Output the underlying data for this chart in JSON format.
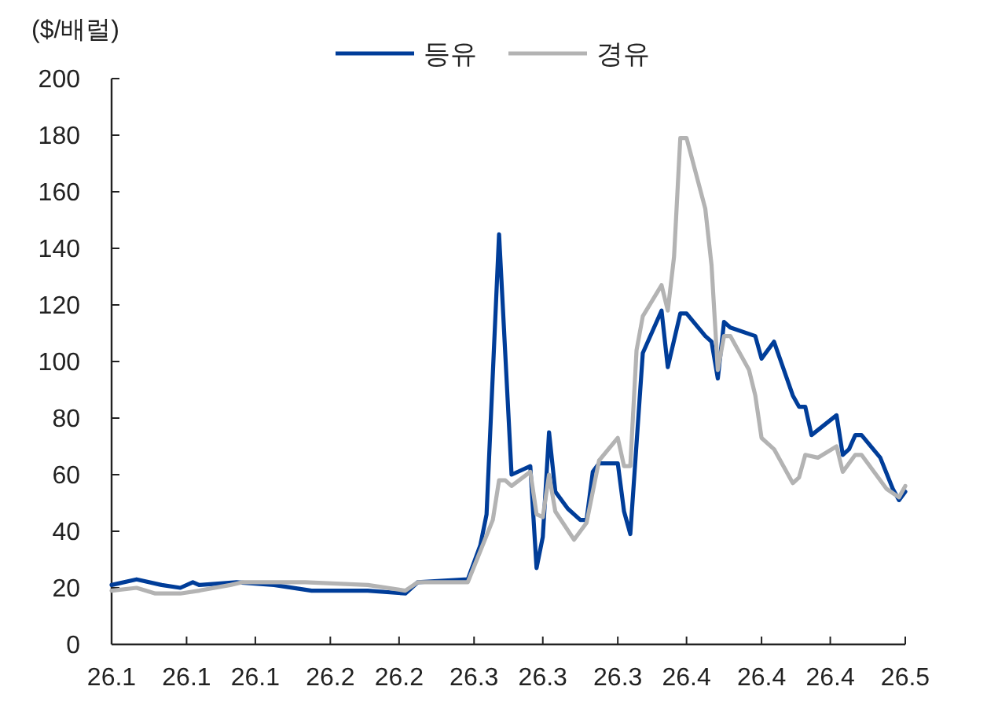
{
  "chart_data": {
    "type": "line",
    "ylabel": "($/배럴)",
    "legend": "top",
    "grid": false,
    "marker": "none",
    "line_style": "solid",
    "xlim": [
      "--01-03",
      "--05-10"
    ],
    "xticks": [
      {
        "value": "--01-03",
        "label": "26.1"
      },
      {
        "value": "--01-15",
        "label": "26.1"
      },
      {
        "value": "--01-26",
        "label": "26.1"
      },
      {
        "value": "--02-07",
        "label": "26.2"
      },
      {
        "value": "--02-18",
        "label": "26.2"
      },
      {
        "value": "--03-02",
        "label": "26.3"
      },
      {
        "value": "--03-13",
        "label": "26.3"
      },
      {
        "value": "--03-25",
        "label": "26.3"
      },
      {
        "value": "--04-05",
        "label": "26.4"
      },
      {
        "value": "--04-17",
        "label": "26.4"
      },
      {
        "value": "--04-28",
        "label": "26.4"
      },
      {
        "value": "--05-10",
        "label": "26.5"
      }
    ],
    "ylim": [
      0,
      200
    ],
    "yticks": [
      0,
      20,
      40,
      60,
      80,
      100,
      120,
      140,
      160,
      180,
      200
    ],
    "series": [
      {
        "name": "등유",
        "color": "#003d99",
        "x": [
          "--01-03",
          "--01-07",
          "--01-11",
          "--01-14",
          "--01-16",
          "--01-17",
          "--01-23",
          "--01-29",
          "--02-04",
          "--02-13",
          "--02-19",
          "--02-21",
          "--03-01",
          "--03-03",
          "--03-04",
          "--03-06",
          "--03-08",
          "--03-11",
          "--03-12",
          "--03-13",
          "--03-14",
          "--03-15",
          "--03-17",
          "--03-19",
          "--03-20",
          "--03-21",
          "--03-22",
          "--03-25",
          "--03-26",
          "--03-27",
          "--03-29",
          "--04-01",
          "--04-02",
          "--04-04",
          "--04-05",
          "--04-08",
          "--04-09",
          "--04-10",
          "--04-11",
          "--04-12",
          "--04-16",
          "--04-17",
          "--04-19",
          "--04-22",
          "--04-23",
          "--04-24",
          "--04-25",
          "--04-29",
          "--04-30",
          "--05-01",
          "--05-02",
          "--05-03",
          "--05-06",
          "--05-08",
          "--05-09",
          "--05-10"
        ],
        "values": [
          21,
          23,
          21,
          20,
          22,
          21,
          22,
          21,
          19,
          19,
          18,
          22,
          23,
          35,
          46,
          145,
          60,
          63,
          27,
          38,
          75,
          54,
          48,
          44,
          44,
          61,
          64,
          64,
          47,
          39,
          103,
          118,
          98,
          117,
          117,
          109,
          107,
          94,
          114,
          112,
          109,
          101,
          107,
          88,
          84,
          84,
          74,
          81,
          67,
          69,
          74,
          74,
          66,
          55,
          51,
          54
        ]
      },
      {
        "name": "경유",
        "color": "#b3b3b3",
        "x": [
          "--01-03",
          "--01-07",
          "--01-10",
          "--01-14",
          "--01-17",
          "--01-22",
          "--01-24",
          "--02-03",
          "--02-13",
          "--02-19",
          "--02-21",
          "--03-01",
          "--03-03",
          "--03-05",
          "--03-06",
          "--03-07",
          "--03-08",
          "--03-11",
          "--03-12",
          "--03-13",
          "--03-14",
          "--03-15",
          "--03-18",
          "--03-20",
          "--03-22",
          "--03-25",
          "--03-26",
          "--03-27",
          "--03-28",
          "--03-29",
          "--04-01",
          "--04-02",
          "--04-03",
          "--04-04",
          "--04-05",
          "--04-08",
          "--04-09",
          "--04-10",
          "--04-11",
          "--04-12",
          "--04-15",
          "--04-16",
          "--04-17",
          "--04-19",
          "--04-22",
          "--04-23",
          "--04-24",
          "--04-26",
          "--04-29",
          "--04-30",
          "--05-02",
          "--05-03",
          "--05-07",
          "--05-09",
          "--05-10"
        ],
        "values": [
          19,
          20,
          18,
          18,
          19,
          21,
          22,
          22,
          21,
          19,
          22,
          22,
          33,
          44,
          58,
          58,
          56,
          61,
          46,
          45,
          60,
          47,
          37,
          43,
          65,
          73,
          63,
          63,
          104,
          116,
          127,
          118,
          137,
          179,
          179,
          154,
          134,
          97,
          109,
          109,
          97,
          88,
          73,
          69,
          57,
          59,
          67,
          66,
          70,
          61,
          67,
          67,
          55,
          52,
          56
        ]
      }
    ]
  }
}
